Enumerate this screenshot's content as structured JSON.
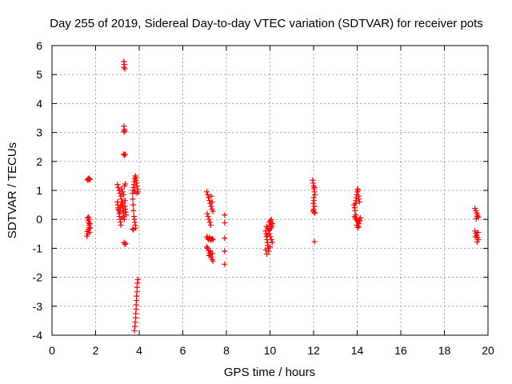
{
  "chart_data": {
    "type": "scatter",
    "title": "Day 255 of 2019, Sidereal Day-to-day VTEC variation (SDTVAR) for receiver pots",
    "xlabel": "GPS time / hours",
    "ylabel": "SDTVAR / TECUs",
    "xlim": [
      0,
      20
    ],
    "ylim": [
      -4,
      6
    ],
    "xticks": [
      0,
      2,
      4,
      6,
      8,
      10,
      12,
      14,
      16,
      18,
      20
    ],
    "yticks": [
      -4,
      -3,
      -2,
      -1,
      0,
      1,
      2,
      3,
      4,
      5,
      6
    ],
    "grid": true,
    "marker": "plus",
    "color": "#ff0000",
    "series": [
      {
        "name": "pots",
        "points": [
          [
            1.62,
            1.36
          ],
          [
            1.66,
            1.4
          ],
          [
            1.7,
            1.42
          ],
          [
            1.74,
            1.38
          ],
          [
            1.68,
            1.37
          ],
          [
            1.64,
            0.05
          ],
          [
            1.66,
            -0.05
          ],
          [
            1.68,
            -0.12
          ],
          [
            1.7,
            -0.2
          ],
          [
            1.72,
            -0.28
          ],
          [
            1.66,
            -0.35
          ],
          [
            1.62,
            -0.42
          ],
          [
            1.64,
            -0.5
          ],
          [
            1.6,
            -0.58
          ],
          [
            1.7,
            0.0
          ],
          [
            1.74,
            -0.15
          ],
          [
            1.76,
            -0.3
          ],
          [
            1.72,
            -0.45
          ],
          [
            1.68,
            0.08
          ],
          [
            3.0,
            1.2
          ],
          [
            3.04,
            1.1
          ],
          [
            3.08,
            1.0
          ],
          [
            3.12,
            0.9
          ],
          [
            3.16,
            0.8
          ],
          [
            3.2,
            1.05
          ],
          [
            3.24,
            0.95
          ],
          [
            3.28,
            0.85
          ],
          [
            3.32,
            1.15
          ],
          [
            3.36,
            1.22
          ],
          [
            3.0,
            0.6
          ],
          [
            3.02,
            0.5
          ],
          [
            3.04,
            0.4
          ],
          [
            3.06,
            0.3
          ],
          [
            3.08,
            0.2
          ],
          [
            3.1,
            0.1
          ],
          [
            3.12,
            0.0
          ],
          [
            3.14,
            -0.1
          ],
          [
            3.16,
            -0.2
          ],
          [
            3.18,
            0.7
          ],
          [
            3.2,
            0.6
          ],
          [
            3.22,
            0.5
          ],
          [
            3.24,
            0.4
          ],
          [
            3.26,
            0.3
          ],
          [
            3.28,
            0.2
          ],
          [
            3.3,
            0.1
          ],
          [
            3.32,
            0.0
          ],
          [
            3.34,
            0.45
          ],
          [
            3.36,
            0.35
          ],
          [
            3.38,
            0.25
          ],
          [
            3.4,
            0.15
          ],
          [
            3.05,
            0.35
          ],
          [
            3.15,
            0.45
          ],
          [
            3.25,
            0.55
          ],
          [
            3.35,
            0.65
          ],
          [
            3.12,
            0.25
          ],
          [
            3.22,
            0.05
          ],
          [
            3.3,
            5.45
          ],
          [
            3.32,
            5.35
          ],
          [
            3.3,
            5.25
          ],
          [
            3.34,
            5.2
          ],
          [
            3.3,
            3.22
          ],
          [
            3.32,
            3.1
          ],
          [
            3.3,
            3.02
          ],
          [
            3.34,
            3.05
          ],
          [
            3.28,
            2.25
          ],
          [
            3.32,
            2.22
          ],
          [
            3.36,
            2.24
          ],
          [
            3.3,
            -0.8
          ],
          [
            3.34,
            -0.86
          ],
          [
            3.38,
            -0.83
          ],
          [
            3.7,
            0.9
          ],
          [
            3.72,
            1.0
          ],
          [
            3.74,
            1.1
          ],
          [
            3.76,
            1.2
          ],
          [
            3.78,
            1.3
          ],
          [
            3.8,
            1.4
          ],
          [
            3.82,
            1.5
          ],
          [
            3.84,
            1.45
          ],
          [
            3.86,
            1.35
          ],
          [
            3.88,
            1.25
          ],
          [
            3.9,
            1.15
          ],
          [
            3.92,
            1.05
          ],
          [
            3.94,
            0.95
          ],
          [
            3.9,
            0.9
          ],
          [
            3.8,
            0.95
          ],
          [
            3.7,
            0.7
          ],
          [
            3.72,
            0.5
          ],
          [
            3.74,
            0.3
          ],
          [
            3.76,
            0.1
          ],
          [
            3.78,
            0.0
          ],
          [
            3.8,
            -0.1
          ],
          [
            3.82,
            -0.2
          ],
          [
            3.84,
            -0.3
          ],
          [
            3.7,
            -0.33
          ],
          [
            3.74,
            -0.36
          ],
          [
            3.78,
            -3.85
          ],
          [
            3.8,
            -3.7
          ],
          [
            3.82,
            -3.55
          ],
          [
            3.84,
            -3.4
          ],
          [
            3.84,
            -3.25
          ],
          [
            3.86,
            -3.1
          ],
          [
            3.86,
            -2.95
          ],
          [
            3.88,
            -2.8
          ],
          [
            3.88,
            -2.65
          ],
          [
            3.9,
            -2.5
          ],
          [
            3.9,
            -2.35
          ],
          [
            3.92,
            -2.2
          ],
          [
            3.94,
            -2.08
          ],
          [
            7.1,
            0.95
          ],
          [
            7.14,
            0.85
          ],
          [
            7.18,
            0.75
          ],
          [
            7.22,
            0.65
          ],
          [
            7.26,
            0.55
          ],
          [
            7.3,
            0.45
          ],
          [
            7.34,
            0.35
          ],
          [
            7.38,
            0.28
          ],
          [
            7.3,
            0.8
          ],
          [
            7.35,
            0.6
          ],
          [
            7.12,
            0.2
          ],
          [
            7.16,
            0.1
          ],
          [
            7.2,
            0.0
          ],
          [
            7.24,
            -0.1
          ],
          [
            7.28,
            -0.2
          ],
          [
            7.1,
            -0.6
          ],
          [
            7.14,
            -0.65
          ],
          [
            7.18,
            -0.7
          ],
          [
            7.22,
            -0.62
          ],
          [
            7.26,
            -0.68
          ],
          [
            7.3,
            -0.72
          ],
          [
            7.34,
            -0.66
          ],
          [
            7.38,
            -0.7
          ],
          [
            7.1,
            -0.95
          ],
          [
            7.14,
            -1.0
          ],
          [
            7.18,
            -1.08
          ],
          [
            7.22,
            -1.15
          ],
          [
            7.26,
            -1.22
          ],
          [
            7.3,
            -1.3
          ],
          [
            7.34,
            -1.38
          ],
          [
            7.38,
            -1.44
          ],
          [
            7.2,
            -1.25
          ],
          [
            7.28,
            -1.1
          ],
          [
            7.36,
            -1.18
          ],
          [
            7.92,
            0.15
          ],
          [
            7.92,
            -0.12
          ],
          [
            7.92,
            -0.65
          ],
          [
            7.92,
            -1.1
          ],
          [
            7.92,
            -1.55
          ],
          [
            9.8,
            -0.4
          ],
          [
            9.82,
            -0.5
          ],
          [
            9.84,
            -0.6
          ],
          [
            9.86,
            -0.7
          ],
          [
            9.88,
            -0.8
          ],
          [
            9.9,
            -0.9
          ],
          [
            9.92,
            -1.0
          ],
          [
            9.94,
            -1.1
          ],
          [
            9.86,
            -1.2
          ],
          [
            9.8,
            -1.05
          ],
          [
            9.9,
            -0.3
          ],
          [
            9.94,
            -0.4
          ],
          [
            9.98,
            -0.5
          ],
          [
            10.02,
            -0.6
          ],
          [
            10.06,
            -0.7
          ],
          [
            10.1,
            -0.8
          ],
          [
            10.0,
            -0.95
          ],
          [
            10.04,
            -0.3
          ],
          [
            9.96,
            -0.1
          ],
          [
            10.0,
            -0.2
          ],
          [
            10.04,
            -0.1
          ],
          [
            10.08,
            -0.25
          ],
          [
            10.12,
            -0.15
          ],
          [
            10.06,
            0.0
          ],
          [
            10.02,
            -0.05
          ],
          [
            9.98,
            -0.35
          ],
          [
            9.84,
            -0.25
          ],
          [
            9.88,
            -0.55
          ],
          [
            11.96,
            1.35
          ],
          [
            11.98,
            1.25
          ],
          [
            12.0,
            1.15
          ],
          [
            12.02,
            1.05
          ],
          [
            12.04,
            0.95
          ],
          [
            12.06,
            0.85
          ],
          [
            12.0,
            0.75
          ],
          [
            12.02,
            0.65
          ],
          [
            11.98,
            0.55
          ],
          [
            12.04,
            0.45
          ],
          [
            12.0,
            0.35
          ],
          [
            11.98,
            0.3
          ],
          [
            12.02,
            0.25
          ],
          [
            12.06,
            0.22
          ],
          [
            12.04,
            1.1
          ],
          [
            12.04,
            -0.77
          ],
          [
            13.86,
            0.5
          ],
          [
            13.88,
            0.4
          ],
          [
            13.9,
            0.3
          ],
          [
            13.92,
            0.55
          ],
          [
            13.94,
            0.65
          ],
          [
            13.96,
            0.75
          ],
          [
            13.98,
            0.85
          ],
          [
            14.0,
            0.95
          ],
          [
            14.02,
            1.05
          ],
          [
            14.04,
            1.0
          ],
          [
            14.06,
            0.8
          ],
          [
            14.08,
            0.7
          ],
          [
            14.1,
            0.6
          ],
          [
            13.88,
            0.1
          ],
          [
            13.92,
            0.05
          ],
          [
            13.96,
            0.0
          ],
          [
            14.0,
            -0.05
          ],
          [
            14.04,
            -0.1
          ],
          [
            14.08,
            -0.15
          ],
          [
            14.12,
            -0.05
          ],
          [
            14.14,
            0.05
          ],
          [
            13.98,
            -0.2
          ],
          [
            14.02,
            -0.28
          ],
          [
            14.06,
            -0.25
          ],
          [
            13.94,
            0.15
          ],
          [
            14.1,
            0.0
          ],
          [
            19.4,
            0.38
          ],
          [
            19.44,
            0.3
          ],
          [
            19.48,
            0.22
          ],
          [
            19.52,
            0.15
          ],
          [
            19.56,
            0.08
          ],
          [
            19.46,
            0.02
          ],
          [
            19.5,
            0.1
          ],
          [
            19.4,
            -0.4
          ],
          [
            19.44,
            -0.48
          ],
          [
            19.48,
            -0.55
          ],
          [
            19.52,
            -0.62
          ],
          [
            19.56,
            -0.7
          ],
          [
            19.5,
            -0.78
          ],
          [
            19.42,
            -0.6
          ],
          [
            19.54,
            -0.45
          ]
        ]
      }
    ]
  }
}
